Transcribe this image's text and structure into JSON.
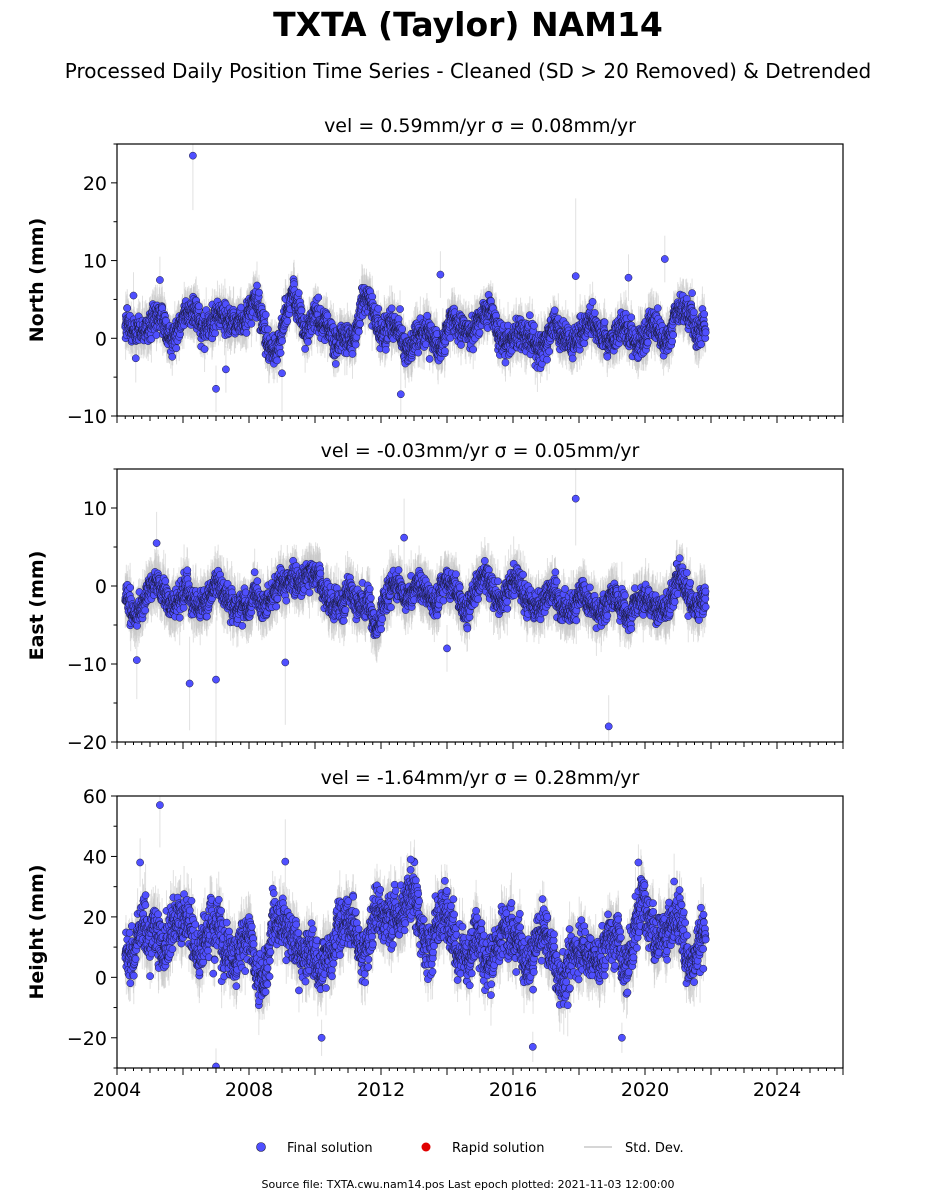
{
  "figure": {
    "title": "TXTA (Taylor) NAM14",
    "subtitle": "Processed Daily Position Time Series - Cleaned (SD > 20 Removed) & Detrended",
    "source_text": "Source file: TXTA.cwu.nam14.pos  Last epoch plotted: 2021-11-03 12:00:00"
  },
  "colors": {
    "final_solution": "#4f4fff",
    "final_edge": "#1a1a3a",
    "rapid_solution": "#e00000",
    "std_dev": "#c8c8c8",
    "axes": "#000000"
  },
  "legend": {
    "placement": "bottom-center",
    "items": [
      {
        "label": "Final solution",
        "marker": "circle",
        "color": "#4f4fff"
      },
      {
        "label": "Rapid solution",
        "marker": "circle",
        "color": "#e00000"
      },
      {
        "label": "Std. Dev.",
        "marker": "line",
        "color": "#c8c8c8"
      }
    ]
  },
  "chart_data": [
    {
      "type": "scatter",
      "title": "vel = 0.59mm/yr   σ = 0.08mm/yr",
      "ylabel": "North (mm)",
      "xlim": [
        2004,
        2026
      ],
      "ylim": [
        -10,
        25
      ],
      "yticks": [
        -10,
        0,
        10,
        20
      ],
      "ytick_labels": [
        "−10",
        "0",
        "10",
        "20"
      ],
      "xticks": [
        2004,
        2008,
        2012,
        2016,
        2020,
        2024
      ],
      "series": [
        {
          "name": "Final solution",
          "x_range": [
            2004.25,
            2021.84
          ],
          "noise_sd": 1.6,
          "seasonal_amp": 1.0,
          "baseline": 0.8,
          "std_dev_typical": 2.5
        }
      ],
      "bumps": [
        [
          2009.3,
          3.5,
          0.35
        ],
        [
          2011.6,
          4.5,
          0.25
        ],
        [
          2008.0,
          2.5,
          0.5
        ],
        [
          2020.8,
          2.0,
          0.5
        ]
      ],
      "outliers": [
        [
          2006.3,
          23.5,
          7
        ],
        [
          2004.5,
          5.5,
          3
        ],
        [
          2005.3,
          7.5,
          3
        ],
        [
          2007.0,
          -6.5,
          3
        ],
        [
          2007.3,
          -4.0,
          3
        ],
        [
          2009.0,
          -4.5,
          5
        ],
        [
          2012.6,
          -7.2,
          4
        ],
        [
          2013.8,
          8.2,
          3
        ],
        [
          2017.9,
          8.0,
          10
        ],
        [
          2020.6,
          10.2,
          3
        ],
        [
          2019.5,
          7.8,
          3
        ]
      ]
    },
    {
      "type": "scatter",
      "title": "vel = -0.03mm/yr   σ = 0.05mm/yr",
      "ylabel": "East (mm)",
      "xlim": [
        2004,
        2026
      ],
      "ylim": [
        -20,
        15
      ],
      "yticks": [
        -20,
        -10,
        0,
        10
      ],
      "ytick_labels": [
        "−20",
        "−10",
        "0",
        "10"
      ],
      "xticks": [
        2004,
        2008,
        2012,
        2016,
        2020,
        2024
      ],
      "series": [
        {
          "name": "Final solution",
          "x_range": [
            2004.25,
            2021.84
          ],
          "noise_sd": 1.5,
          "seasonal_amp": 1.2,
          "baseline": -2.0,
          "std_dev_typical": 2.8
        }
      ],
      "bumps": [
        [
          2009.7,
          2.5,
          0.45
        ],
        [
          2012.5,
          3.5,
          0.3
        ],
        [
          2011.9,
          -4.0,
          0.2
        ],
        [
          2015.5,
          1.5,
          0.6
        ]
      ],
      "outliers": [
        [
          2004.6,
          -9.5,
          5
        ],
        [
          2005.2,
          5.5,
          4
        ],
        [
          2006.2,
          -12.5,
          6
        ],
        [
          2007.0,
          -12.0,
          8
        ],
        [
          2009.1,
          -9.8,
          8
        ],
        [
          2012.7,
          6.2,
          5
        ],
        [
          2017.9,
          11.2,
          6
        ],
        [
          2018.9,
          -18.0,
          4
        ],
        [
          2014.0,
          -8.0,
          3
        ]
      ]
    },
    {
      "type": "scatter",
      "title": "vel = -1.64mm/yr   σ = 0.28mm/yr",
      "ylabel": "Height (mm)",
      "xlim": [
        2004,
        2026
      ],
      "ylim": [
        -30,
        60
      ],
      "yticks": [
        -20,
        0,
        20,
        40,
        60
      ],
      "ytick_labels": [
        "−20",
        "0",
        "20",
        "40",
        "60"
      ],
      "xticks": [
        2004,
        2008,
        2012,
        2016,
        2020,
        2024
      ],
      "xtick_labels": [
        "2004",
        "2008",
        "2012",
        "2016",
        "2020",
        "2024"
      ],
      "series": [
        {
          "name": "Final solution",
          "x_range": [
            2004.25,
            2021.84
          ],
          "noise_sd": 7.0,
          "seasonal_amp": 5.0,
          "baseline": 12.0,
          "std_dev_typical": 8.0
        }
      ],
      "bumps": [
        [
          2010.0,
          -8.0,
          0.5
        ],
        [
          2012.8,
          6.0,
          0.6
        ],
        [
          2021.4,
          -6.0,
          0.3
        ]
      ],
      "outliers": [
        [
          2005.3,
          57.0,
          14
        ],
        [
          2004.7,
          38.0,
          8
        ],
        [
          2007.0,
          -29.5,
          6
        ],
        [
          2009.1,
          38.3,
          14
        ],
        [
          2010.2,
          -20.0,
          6
        ],
        [
          2016.6,
          -23.0,
          5
        ],
        [
          2019.3,
          -20.0,
          5
        ],
        [
          2019.8,
          38.0,
          6
        ],
        [
          2012.9,
          39.0,
          6
        ]
      ]
    }
  ]
}
